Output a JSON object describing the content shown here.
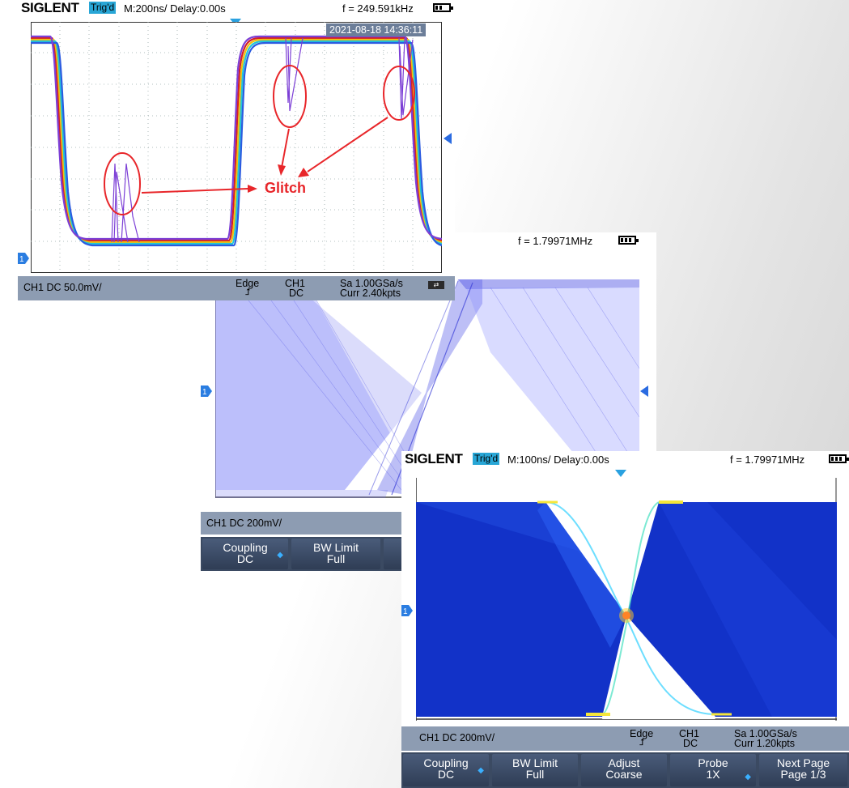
{
  "screen1": {
    "logo": "SIGLENT",
    "trigger": "Trig'd",
    "timebase": "M:200ns/ Delay:0.00s",
    "frequency": "f = 249.591kHz",
    "datetime": "2021-08-18 14:36:11",
    "annotation": "Glitch",
    "status": {
      "channel": "CH1 DC 50.0mV/",
      "trig_type": "Edge",
      "trig_source": "CH1",
      "trig_coupling": "DC",
      "sample_rate": "Sa 1.00GSa/s",
      "memory": "Curr 2.40kpts"
    }
  },
  "screen2": {
    "frequency": "f = 1.79971MHz",
    "status": {
      "channel": "CH1 DC 200mV/"
    },
    "softkeys": [
      {
        "l1": "Coupling",
        "l2": "DC"
      },
      {
        "l1": "BW Limit",
        "l2": "Full"
      }
    ]
  },
  "screen3": {
    "logo": "SIGLENT",
    "trigger": "Trig'd",
    "timebase": "M:100ns/ Delay:0.00s",
    "frequency": "f = 1.79971MHz",
    "status": {
      "channel": "CH1 DC 200mV/",
      "trig_type": "Edge",
      "trig_source": "CH1",
      "trig_coupling": "DC",
      "sample_rate": "Sa 1.00GSa/s",
      "memory": "Curr 1.20kpts"
    },
    "softkeys": [
      {
        "l1": "Coupling",
        "l2": "DC"
      },
      {
        "l1": "BW Limit",
        "l2": "Full"
      },
      {
        "l1": "Adjust",
        "l2": "Coarse"
      },
      {
        "l1": "Probe",
        "l2": "1X"
      },
      {
        "l1": "Next Page",
        "l2": "Page 1/3"
      }
    ]
  },
  "colors": {
    "status_bar": "#8d9cb2",
    "menu_bar": "#3b4a62",
    "trigger_badge": "#28a6d6",
    "glitch_red": "#e8262a"
  }
}
